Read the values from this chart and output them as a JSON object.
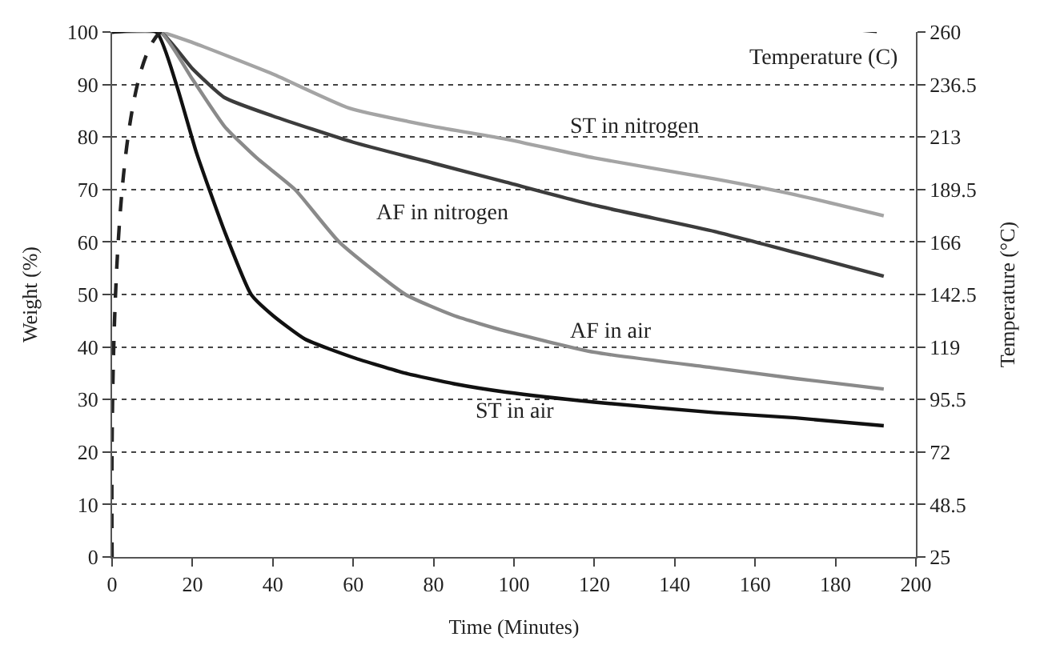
{
  "chart_data": {
    "type": "line",
    "xlabel": "Time (Minutes)",
    "ylabel": "Weight (%)",
    "y2label": "Temperature (°C)",
    "xlim": [
      0,
      200
    ],
    "xticks": [
      0,
      20,
      40,
      60,
      80,
      100,
      120,
      140,
      160,
      180,
      200
    ],
    "ylim": [
      0,
      100
    ],
    "yticks": [
      0,
      10,
      20,
      30,
      40,
      50,
      60,
      70,
      80,
      90,
      100
    ],
    "y2lim": [
      25,
      260
    ],
    "y2ticks": [
      25,
      48.5,
      72,
      95.5,
      119,
      142.5,
      166,
      189.5,
      213,
      236.5,
      260
    ],
    "grid": "y",
    "legend": false,
    "marker": "none",
    "series": [
      {
        "name": "ST in nitrogen",
        "color": "#a4a4a4",
        "x": [
          0,
          12,
          20,
          40,
          59,
          80,
          98,
          120,
          150,
          170,
          192
        ],
        "values": [
          100,
          100,
          98,
          92,
          85.5,
          82,
          79.6,
          76,
          72,
          69,
          65
        ]
      },
      {
        "name": "AF in nitrogen",
        "color": "#3c3c3c",
        "x": [
          0,
          12,
          20,
          28,
          40,
          60,
          80,
          98,
          120,
          150,
          170,
          192
        ],
        "values": [
          100,
          100,
          93,
          87.5,
          84,
          79,
          75,
          71.4,
          67,
          62,
          58,
          53.5
        ]
      },
      {
        "name": "AF in air",
        "color": "#8a8a8a",
        "x": [
          0,
          12,
          20,
          28,
          36,
          45.5,
          56.5,
          73,
          85,
          98,
          120,
          150,
          170,
          192
        ],
        "values": [
          100,
          100,
          91,
          82,
          76,
          70,
          60,
          50,
          46,
          43,
          39,
          36,
          34,
          32
        ]
      },
      {
        "name": "ST in air",
        "color": "#111111",
        "x": [
          0,
          11,
          16,
          21,
          28,
          34.6,
          40,
          48,
          60,
          73,
          85,
          98,
          120,
          150,
          170,
          192
        ],
        "values": [
          100,
          100,
          90,
          77,
          62,
          50,
          46,
          41.5,
          38,
          35,
          33,
          31.4,
          29.5,
          27.5,
          26.5,
          25
        ]
      },
      {
        "name": "Temperature (C)",
        "color": "#222222",
        "axis": "y2",
        "line_style": "dashed",
        "x": [
          0,
          12,
          192
        ],
        "values": [
          25,
          260,
          260
        ]
      }
    ]
  }
}
